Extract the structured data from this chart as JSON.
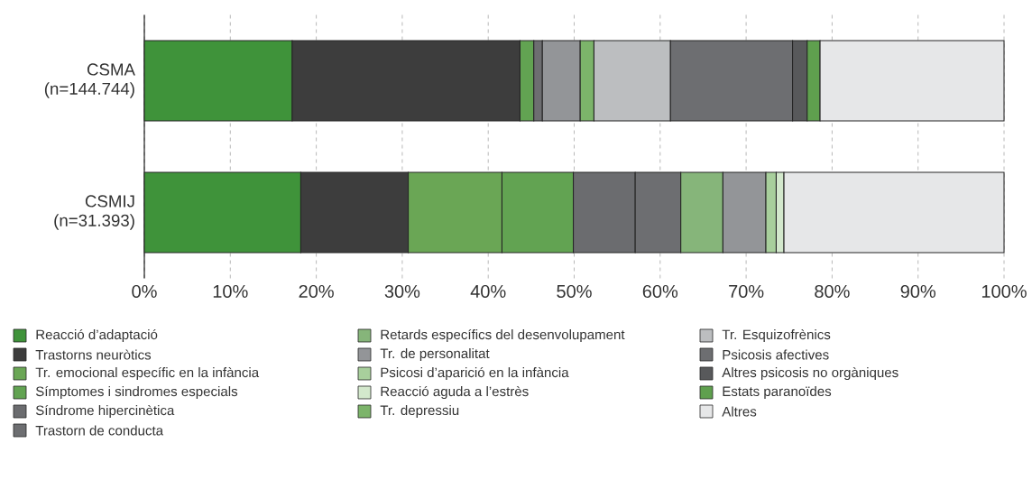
{
  "chart_data": {
    "type": "bar",
    "orientation": "horizontal",
    "stacked": true,
    "categories": [
      "CSMA (n=144.744)",
      "CSMIJ (n=31.393)"
    ],
    "xlim": [
      0,
      100
    ],
    "xticks": [
      {
        "value": 0,
        "label": "0%"
      },
      {
        "value": 10,
        "label": "10%"
      },
      {
        "value": 20,
        "label": "20%"
      },
      {
        "value": 30,
        "label": "30%"
      },
      {
        "value": 40,
        "label": "40%"
      },
      {
        "value": 50,
        "label": "50%"
      },
      {
        "value": 60,
        "label": "60%"
      },
      {
        "value": 70,
        "label": "70%"
      },
      {
        "value": 80,
        "label": "80%"
      },
      {
        "value": 90,
        "label": "90%"
      },
      {
        "value": 100,
        "label": "100%"
      }
    ],
    "grid": "x",
    "legend": "bottom",
    "series": [
      {
        "name": "Reacció d’adaptació",
        "color": "#3f933a",
        "values": [
          17.2,
          18.2
        ]
      },
      {
        "name": "Trastorns neuròtics",
        "color": "#3d3d3d",
        "values": [
          26.5,
          12.5
        ]
      },
      {
        "name": "Tr. emocional específic en la infància",
        "color": "#6aa655",
        "values": [
          null,
          10.9
        ]
      },
      {
        "name": "Símptomes i sindromes especials",
        "color": "#62a352",
        "values": [
          1.6,
          8.3
        ]
      },
      {
        "name": "Síndrome hipercinètica",
        "color": "#6b6c6f",
        "values": [
          null,
          7.2
        ]
      },
      {
        "name": "Trastorn de conducta",
        "color": "#6d6e71",
        "values": [
          1.0,
          5.3
        ]
      },
      {
        "name": "Retards específics del desenvolupament",
        "color": "#86b57a",
        "values": [
          null,
          4.9
        ]
      },
      {
        "name": "Tr. de personalitat",
        "color": "#939598",
        "values": [
          4.4,
          5.0
        ]
      },
      {
        "name": "Psicosi d’aparició en la infància",
        "color": "#a8cf9c",
        "values": [
          null,
          1.2
        ]
      },
      {
        "name": "Reacció aguda a l’estrès",
        "color": "#d3e8cc",
        "values": [
          null,
          0.9
        ]
      },
      {
        "name": "Tr. depressiu",
        "color": "#7cb46a",
        "values": [
          1.6,
          null
        ]
      },
      {
        "name": "Tr. Esquizofrènics",
        "color": "#bcbec0",
        "values": [
          8.9,
          null
        ]
      },
      {
        "name": "Psicosis afectives",
        "color": "#6d6e71",
        "values": [
          14.2,
          null
        ]
      },
      {
        "name": "Altres psicosis no orgàniques",
        "color": "#58595b",
        "values": [
          1.7,
          null
        ]
      },
      {
        "name": "Estats paranoïdes",
        "color": "#5fa04e",
        "values": [
          1.5,
          null
        ]
      },
      {
        "name": "Altres",
        "color": "#e6e7e8",
        "values": [
          21.4,
          25.6
        ]
      }
    ]
  }
}
